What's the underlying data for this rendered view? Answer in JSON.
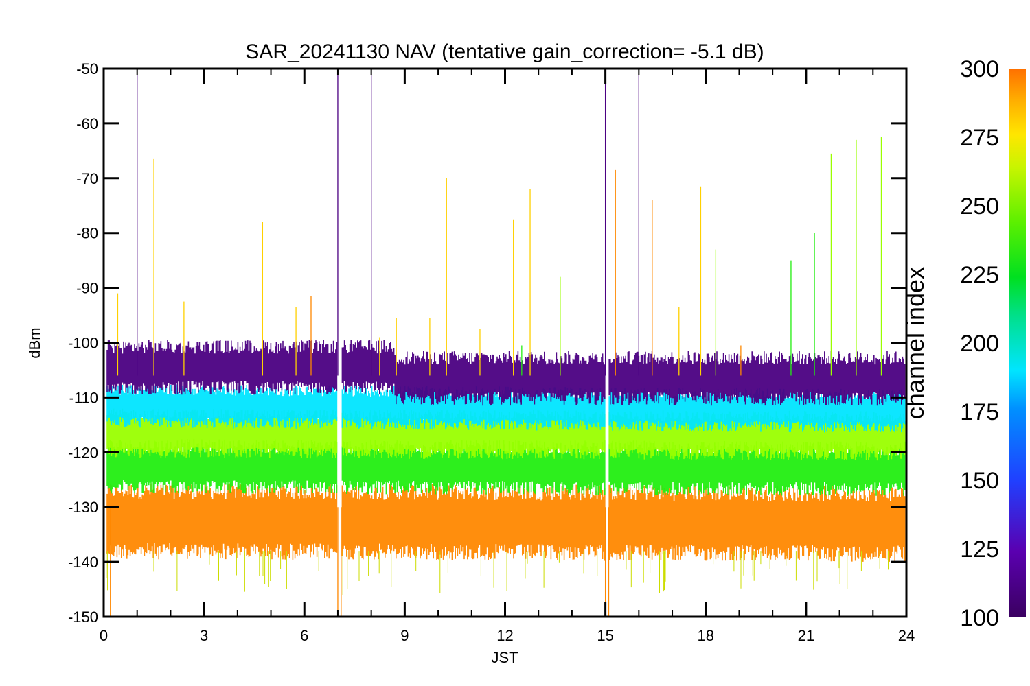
{
  "chart_data": {
    "type": "line",
    "title": "SAR_20241130 NAV (tentative gain_correction= -5.1 dB)",
    "xlabel": "JST",
    "ylabel": "dBm",
    "xlim": [
      0,
      24
    ],
    "ylim": [
      -150,
      -50
    ],
    "xticks": [
      0,
      3,
      6,
      9,
      12,
      15,
      18,
      21,
      24
    ],
    "yticks": [
      -50,
      -60,
      -70,
      -80,
      -90,
      -100,
      -110,
      -120,
      -130,
      -140,
      -150
    ],
    "grid": false,
    "colorbar": {
      "title": "channel index",
      "range": [
        100,
        300
      ],
      "ticks": [
        100,
        125,
        150,
        175,
        200,
        225,
        250,
        275,
        300
      ],
      "colormap": "rainbow (purple to orange)"
    },
    "gaps_x": [
      7.05,
      15.05
    ],
    "bands": [
      {
        "name": "ch ~100-120",
        "color": "#4b0082",
        "center_start": -104.5,
        "center_end": -106.5,
        "step_x": 8.7,
        "half_width": 2.5,
        "noise": 2.5
      },
      {
        "name": "ch ~175-185",
        "color": "#00e5ff",
        "center_start": -111.5,
        "center_end": -112.5,
        "half_width": 2.0,
        "noise": 2.0
      },
      {
        "name": "ch ~250-260",
        "color": "#9aff00",
        "center_start": -116.5,
        "center_end": -117,
        "half_width": 2.5,
        "noise": 2.0
      },
      {
        "name": "ch ~225-240",
        "color": "#22ee11",
        "center_start": -122.5,
        "center_end": -123,
        "half_width": 2.5,
        "noise": 2.5
      },
      {
        "name": "ch ~290-300",
        "color": "#ff8800",
        "center_start": -132.5,
        "center_end": -133,
        "half_width": 4.0,
        "noise": 3.0
      }
    ],
    "spikes": [
      {
        "x": 0.42,
        "y": -91,
        "color": "#ffd000"
      },
      {
        "x": 1.0,
        "y": -50,
        "color": "#4b0082"
      },
      {
        "x": 1.5,
        "y": -66.5,
        "color": "#ffd000"
      },
      {
        "x": 2.4,
        "y": -92.5,
        "color": "#ffd000"
      },
      {
        "x": 4.75,
        "y": -78,
        "color": "#ffd000"
      },
      {
        "x": 5.75,
        "y": -93.5,
        "color": "#ffd000"
      },
      {
        "x": 6.2,
        "y": -91.5,
        "color": "#ff8800"
      },
      {
        "x": 7.0,
        "y": -50,
        "color": "#4b0082"
      },
      {
        "x": 8.0,
        "y": -50,
        "color": "#4b0082"
      },
      {
        "x": 8.25,
        "y": -99,
        "color": "#ffd000"
      },
      {
        "x": 8.75,
        "y": -95.5,
        "color": "#ffd000"
      },
      {
        "x": 9.75,
        "y": -95.5,
        "color": "#ffd000"
      },
      {
        "x": 10.25,
        "y": -70,
        "color": "#ffd000"
      },
      {
        "x": 11.25,
        "y": -97.5,
        "color": "#ffd000"
      },
      {
        "x": 12.25,
        "y": -77.5,
        "color": "#ffd000"
      },
      {
        "x": 12.5,
        "y": -100.5,
        "color": "#22ee11"
      },
      {
        "x": 12.75,
        "y": -72,
        "color": "#ffd000"
      },
      {
        "x": 13.65,
        "y": -88,
        "color": "#9aff00"
      },
      {
        "x": 15.0,
        "y": -50,
        "color": "#4b0082"
      },
      {
        "x": 15.3,
        "y": -68.5,
        "color": "#ff8800"
      },
      {
        "x": 16.0,
        "y": -50,
        "color": "#4b0082"
      },
      {
        "x": 16.4,
        "y": -74,
        "color": "#ff8800"
      },
      {
        "x": 17.2,
        "y": -93.5,
        "color": "#ffd000"
      },
      {
        "x": 17.85,
        "y": -71.5,
        "color": "#ffd000"
      },
      {
        "x": 18.3,
        "y": -83,
        "color": "#9aff00"
      },
      {
        "x": 19.05,
        "y": -100.5,
        "color": "#ff8800"
      },
      {
        "x": 20.55,
        "y": -85,
        "color": "#22ee11"
      },
      {
        "x": 21.25,
        "y": -80,
        "color": "#22ee11"
      },
      {
        "x": 21.75,
        "y": -65.5,
        "color": "#9aff00"
      },
      {
        "x": 22.5,
        "y": -63,
        "color": "#9aff00"
      },
      {
        "x": 23.25,
        "y": -62.5,
        "color": "#9aff00"
      }
    ]
  }
}
